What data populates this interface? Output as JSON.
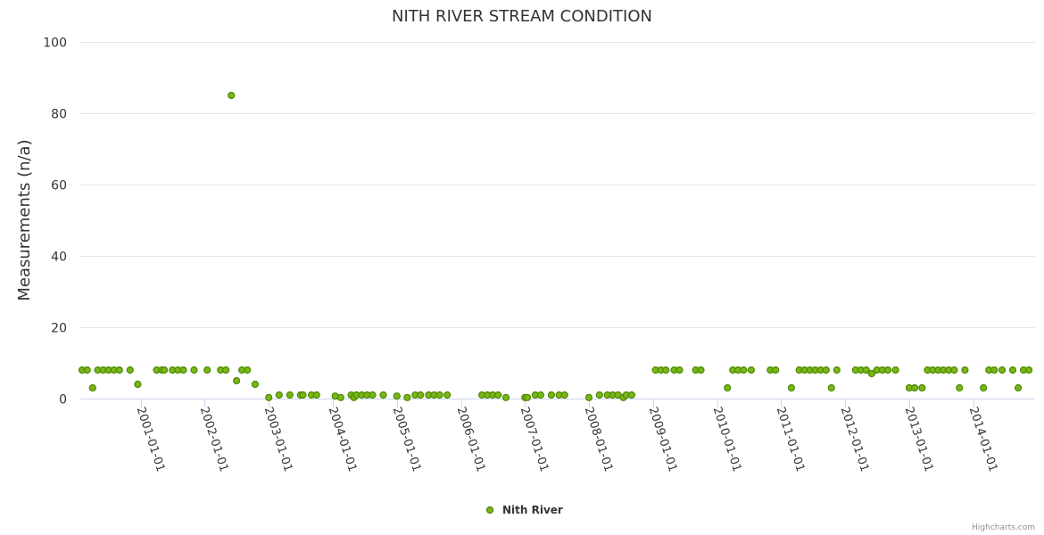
{
  "chart_data": {
    "type": "scatter",
    "title": "NITH RIVER STREAM CONDITION",
    "xlabel": "",
    "ylabel": "Measurements (n/a)",
    "ylim": [
      0,
      100
    ],
    "yticks": [
      "0",
      "20",
      "40",
      "60",
      "80",
      "100"
    ],
    "xlim": [
      "2000-01-22",
      "2014-12-20"
    ],
    "xticks": [
      "2001-01-01",
      "2002-01-01",
      "2003-01-01",
      "2004-01-01",
      "2005-01-01",
      "2006-01-01",
      "2007-01-01",
      "2008-01-01",
      "2009-01-01",
      "2010-01-01",
      "2011-01-01",
      "2012-01-01",
      "2013-01-01",
      "2014-01-01"
    ],
    "grid": true,
    "legend_position": "bottom-center",
    "series": [
      {
        "name": "Nith River",
        "color": "#7cb518",
        "stroke": "#4a8a00",
        "points": [
          [
            "2000-02-01",
            8
          ],
          [
            "2000-03-01",
            8
          ],
          [
            "2000-04-01",
            3
          ],
          [
            "2000-05-01",
            8
          ],
          [
            "2000-06-01",
            8
          ],
          [
            "2000-07-01",
            8
          ],
          [
            "2000-08-01",
            8
          ],
          [
            "2000-09-01",
            8
          ],
          [
            "2000-11-01",
            8
          ],
          [
            "2000-12-15",
            4
          ],
          [
            "2001-04-01",
            8
          ],
          [
            "2001-05-01",
            8
          ],
          [
            "2001-05-15",
            8
          ],
          [
            "2001-07-01",
            8
          ],
          [
            "2001-08-01",
            8
          ],
          [
            "2001-09-01",
            8
          ],
          [
            "2001-11-01",
            8
          ],
          [
            "2002-01-15",
            8
          ],
          [
            "2002-04-01",
            8
          ],
          [
            "2002-05-01",
            8
          ],
          [
            "2002-06-01",
            85
          ],
          [
            "2002-07-01",
            5
          ],
          [
            "2002-08-01",
            8
          ],
          [
            "2002-09-01",
            8
          ],
          [
            "2002-10-15",
            4
          ],
          [
            "2003-01-01",
            0.3
          ],
          [
            "2003-03-01",
            1
          ],
          [
            "2003-05-01",
            1
          ],
          [
            "2003-07-01",
            1
          ],
          [
            "2003-07-15",
            1
          ],
          [
            "2003-09-01",
            1
          ],
          [
            "2003-10-01",
            1
          ],
          [
            "2004-01-15",
            0.7
          ],
          [
            "2004-02-15",
            0.3
          ],
          [
            "2004-04-15",
            1
          ],
          [
            "2004-05-01",
            0.3
          ],
          [
            "2004-05-15",
            1
          ],
          [
            "2004-06-15",
            1
          ],
          [
            "2004-07-15",
            1
          ],
          [
            "2004-08-15",
            1
          ],
          [
            "2004-10-15",
            1
          ],
          [
            "2005-01-01",
            0.7
          ],
          [
            "2005-03-01",
            0.3
          ],
          [
            "2005-04-15",
            1
          ],
          [
            "2005-05-15",
            1
          ],
          [
            "2005-07-01",
            1
          ],
          [
            "2005-08-01",
            1
          ],
          [
            "2005-09-01",
            1
          ],
          [
            "2005-10-15",
            1
          ],
          [
            "2006-05-01",
            1
          ],
          [
            "2006-06-01",
            1
          ],
          [
            "2006-07-01",
            1
          ],
          [
            "2006-08-01",
            1
          ],
          [
            "2006-09-15",
            0.3
          ],
          [
            "2007-01-01",
            0.3
          ],
          [
            "2007-01-15",
            0.3
          ],
          [
            "2007-03-01",
            1
          ],
          [
            "2007-04-01",
            1
          ],
          [
            "2007-06-01",
            1
          ],
          [
            "2007-07-15",
            1
          ],
          [
            "2007-08-15",
            1
          ],
          [
            "2008-01-01",
            0.3
          ],
          [
            "2008-03-01",
            1
          ],
          [
            "2008-04-15",
            1
          ],
          [
            "2008-05-15",
            1
          ],
          [
            "2008-06-15",
            1
          ],
          [
            "2008-07-15",
            0.3
          ],
          [
            "2008-08-01",
            1
          ],
          [
            "2008-09-01",
            1
          ],
          [
            "2009-01-15",
            8
          ],
          [
            "2009-02-15",
            8
          ],
          [
            "2009-03-15",
            8
          ],
          [
            "2009-05-01",
            8
          ],
          [
            "2009-06-01",
            8
          ],
          [
            "2009-09-01",
            8
          ],
          [
            "2009-10-01",
            8
          ],
          [
            "2010-03-01",
            3
          ],
          [
            "2010-04-01",
            8
          ],
          [
            "2010-05-01",
            8
          ],
          [
            "2010-06-01",
            8
          ],
          [
            "2010-07-15",
            8
          ],
          [
            "2010-11-01",
            8
          ],
          [
            "2010-12-01",
            8
          ],
          [
            "2011-03-01",
            3
          ],
          [
            "2011-04-15",
            8
          ],
          [
            "2011-05-15",
            8
          ],
          [
            "2011-06-15",
            8
          ],
          [
            "2011-07-15",
            8
          ],
          [
            "2011-08-15",
            8
          ],
          [
            "2011-09-15",
            8
          ],
          [
            "2011-10-15",
            3
          ],
          [
            "2011-11-15",
            8
          ],
          [
            "2012-03-01",
            8
          ],
          [
            "2012-04-01",
            8
          ],
          [
            "2012-05-01",
            8
          ],
          [
            "2012-06-01",
            7
          ],
          [
            "2012-07-01",
            8
          ],
          [
            "2012-08-01",
            8
          ],
          [
            "2012-09-01",
            8
          ],
          [
            "2012-10-15",
            8
          ],
          [
            "2013-01-01",
            3
          ],
          [
            "2013-02-01",
            3
          ],
          [
            "2013-03-15",
            3
          ],
          [
            "2013-04-15",
            8
          ],
          [
            "2013-05-15",
            8
          ],
          [
            "2013-06-15",
            8
          ],
          [
            "2013-07-15",
            8
          ],
          [
            "2013-08-15",
            8
          ],
          [
            "2013-09-15",
            8
          ],
          [
            "2013-10-15",
            3
          ],
          [
            "2013-11-15",
            8
          ],
          [
            "2014-03-01",
            3
          ],
          [
            "2014-04-01",
            8
          ],
          [
            "2014-05-01",
            8
          ],
          [
            "2014-06-15",
            8
          ],
          [
            "2014-08-15",
            8
          ],
          [
            "2014-09-15",
            3
          ],
          [
            "2014-10-15",
            8
          ],
          [
            "2014-11-15",
            8
          ]
        ]
      }
    ]
  },
  "credits": "Highcharts.com"
}
